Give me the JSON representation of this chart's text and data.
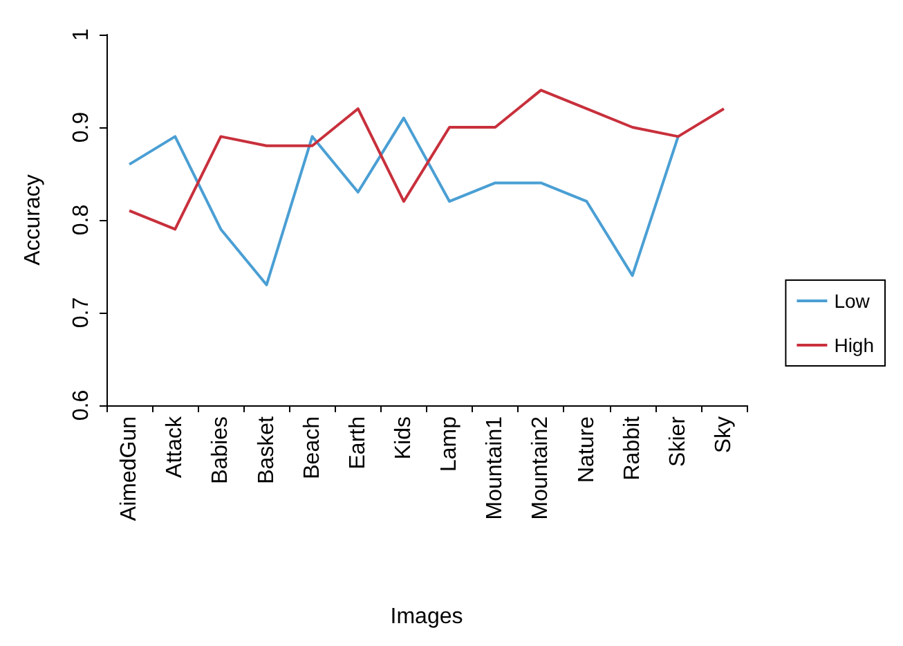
{
  "chart_data": {
    "type": "line",
    "xlabel": "Images",
    "ylabel": "Accuracy",
    "categories": [
      "AimedGun",
      "Attack",
      "Babies",
      "Basket",
      "Beach",
      "Earth",
      "Kids",
      "Lamp",
      "Mountain1",
      "Mountain2",
      "Nature",
      "Rabbit",
      "Skier",
      "Sky"
    ],
    "series": [
      {
        "name": "Low",
        "color": "#4a9fd4",
        "values": [
          0.86,
          0.89,
          0.79,
          0.73,
          0.89,
          0.83,
          0.91,
          0.82,
          0.84,
          0.84,
          0.82,
          0.74,
          0.89,
          null
        ]
      },
      {
        "name": "High",
        "color": "#c8303c",
        "values": [
          0.81,
          0.79,
          0.89,
          0.88,
          0.88,
          0.92,
          0.82,
          0.9,
          0.9,
          0.94,
          0.92,
          0.9,
          0.89,
          0.92
        ]
      }
    ],
    "ylim": [
      0.6,
      1
    ],
    "yticks": [
      0.6,
      0.7,
      0.8,
      0.9,
      1
    ],
    "grid": false,
    "legend": "right",
    "marker": "none",
    "line_style": "solid"
  }
}
